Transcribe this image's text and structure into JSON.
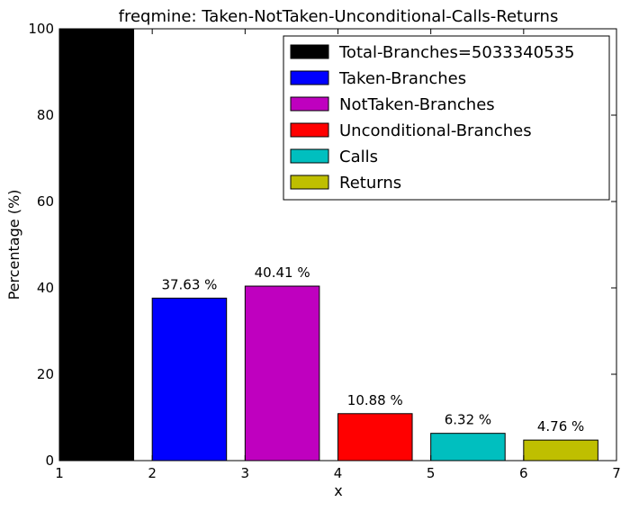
{
  "chart_data": {
    "type": "bar",
    "title": "freqmine: Taken-NotTaken-Unconditional-Calls-Returns",
    "xlabel": "x",
    "ylabel": "Percentage (%)",
    "xlim": [
      1,
      7
    ],
    "ylim": [
      0,
      100
    ],
    "xticks": [
      "1",
      "2",
      "3",
      "4",
      "5",
      "6",
      "7"
    ],
    "yticks": [
      "0",
      "20",
      "40",
      "60",
      "80",
      "100"
    ],
    "grid": false,
    "legend_position": "top-right",
    "bars": [
      {
        "name": "Total-Branches=5033340535",
        "x": 1,
        "value": 100,
        "label": "",
        "color": "#000000"
      },
      {
        "name": "Taken-Branches",
        "x": 2,
        "value": 37.63,
        "label": "37.63 %",
        "color": "#0000ff"
      },
      {
        "name": "NotTaken-Branches",
        "x": 3,
        "value": 40.41,
        "label": "40.41 %",
        "color": "#bf00bf"
      },
      {
        "name": "Unconditional-Branches",
        "x": 4,
        "value": 10.88,
        "label": "10.88 %",
        "color": "#ff0000"
      },
      {
        "name": "Calls",
        "x": 5,
        "value": 6.32,
        "label": "6.32 %",
        "color": "#00bfbf"
      },
      {
        "name": "Returns",
        "x": 6,
        "value": 4.76,
        "label": "4.76 %",
        "color": "#bfbf00"
      }
    ]
  }
}
